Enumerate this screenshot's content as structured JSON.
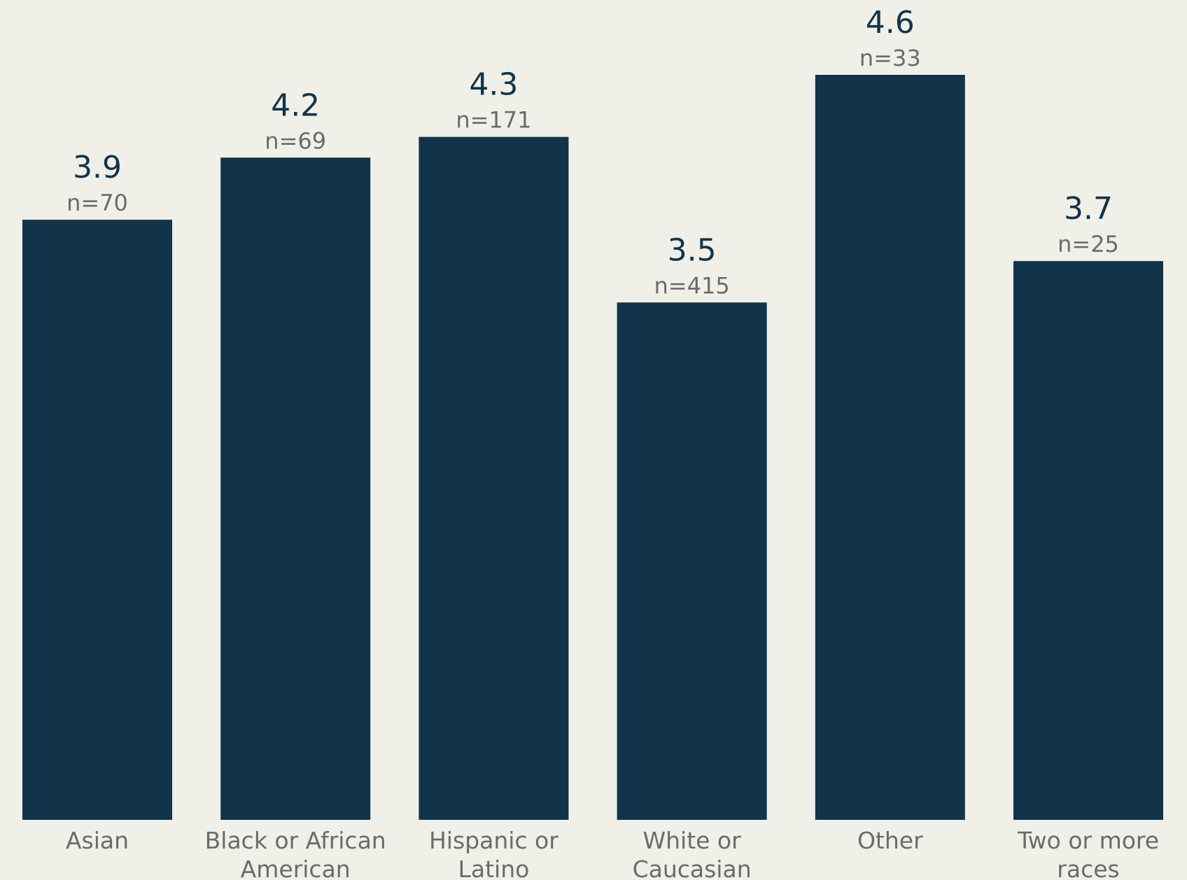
{
  "colors": {
    "background": "#f0efe8",
    "bar": "#11344a",
    "value_text": "#11344a",
    "n_text": "#6b6b6b",
    "category_text": "#6b6b6b"
  },
  "chart_data": {
    "type": "bar",
    "categories": [
      [
        "Asian"
      ],
      [
        "Black or African",
        "American"
      ],
      [
        "Hispanic or",
        "Latino"
      ],
      [
        "White or",
        "Caucasian"
      ],
      [
        "Other"
      ],
      [
        "Two or more",
        "races"
      ]
    ],
    "values": [
      3.9,
      4.2,
      4.3,
      3.5,
      4.6,
      3.7
    ],
    "value_labels": [
      "3.9",
      "4.2",
      "4.3",
      "3.5",
      "4.6",
      "3.7"
    ],
    "n_labels": [
      "n=70",
      "n=69",
      "n=171",
      "n=415",
      "n=33",
      "n=25"
    ],
    "title": "",
    "xlabel": "",
    "ylabel": "",
    "ylim": [
      1,
      4.6
    ],
    "grid": false,
    "legend": "none"
  }
}
